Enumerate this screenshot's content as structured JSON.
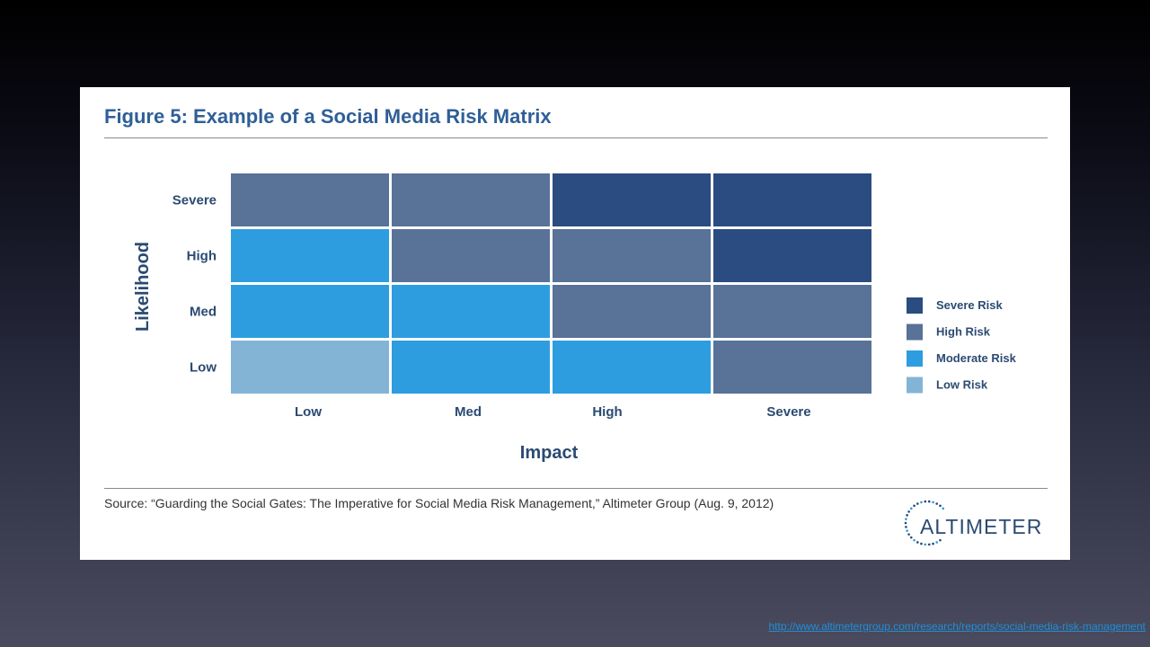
{
  "figure": {
    "title": "Figure 5: Example of a Social Media Risk Matrix",
    "source": "Source: “Guarding the Social Gates: The Imperative for Social Media Risk Management,” Altimeter Group (Aug. 9, 2012)"
  },
  "logo": {
    "text": "ALTIMETER",
    "name": "altimeter-logo"
  },
  "footer": {
    "link_text": "http://www.altimetergroup.com/research/reports/social-media-risk-management"
  },
  "colors": {
    "severe": "#2a4c80",
    "high": "#587298",
    "moderate": "#2d9ddf",
    "low": "#83b4d6",
    "text": "#2b4a72",
    "title": "#2f5f97"
  },
  "chart_data": {
    "type": "heatmap",
    "title": "Figure 5: Example of a Social Media Risk Matrix",
    "xlabel": "Impact",
    "ylabel": "Likelihood",
    "x_categories": [
      "Low",
      "Med",
      "High",
      "Severe"
    ],
    "y_categories": [
      "Severe",
      "High",
      "Med",
      "Low"
    ],
    "cells": [
      [
        "high",
        "high",
        "severe",
        "severe"
      ],
      [
        "moderate",
        "high",
        "high",
        "severe"
      ],
      [
        "moderate",
        "moderate",
        "high",
        "high"
      ],
      [
        "low",
        "moderate",
        "moderate",
        "high"
      ]
    ],
    "legend": [
      {
        "key": "severe",
        "label": "Severe Risk"
      },
      {
        "key": "high",
        "label": "High Risk"
      },
      {
        "key": "moderate",
        "label": "Moderate Risk"
      },
      {
        "key": "low",
        "label": "Low Risk"
      }
    ]
  }
}
